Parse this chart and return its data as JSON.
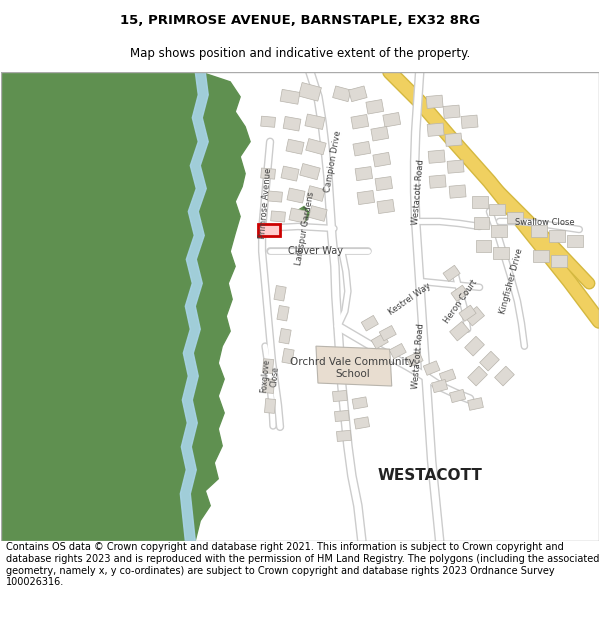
{
  "title": "15, PRIMROSE AVENUE, BARNSTAPLE, EX32 8RG",
  "subtitle": "Map shows position and indicative extent of the property.",
  "footer": "Contains OS data © Crown copyright and database right 2021. This information is subject to Crown copyright and database rights 2023 and is reproduced with the permission of HM Land Registry. The polygons (including the associated geometry, namely x, y co-ordinates) are subject to Crown copyright and database rights 2023 Ordnance Survey 100026316.",
  "fig_width": 6.0,
  "fig_height": 6.25,
  "map_bg": "#ffffff",
  "title_fontsize": 9.5,
  "subtitle_fontsize": 8.5,
  "footer_fontsize": 7.0,
  "green_color": "#5f9050",
  "road_yellow": "#f0d060",
  "road_outline": "#d4b840",
  "road_white": "#ffffff",
  "road_gray": "#cccccc",
  "building_color": "#dedad4",
  "building_outline": "#b8b4ac",
  "school_color": "#e8ddd0",
  "water_color": "#a8d4e8",
  "highlight_color": "#cc0000",
  "text_color": "#000000",
  "label_color": "#404040"
}
